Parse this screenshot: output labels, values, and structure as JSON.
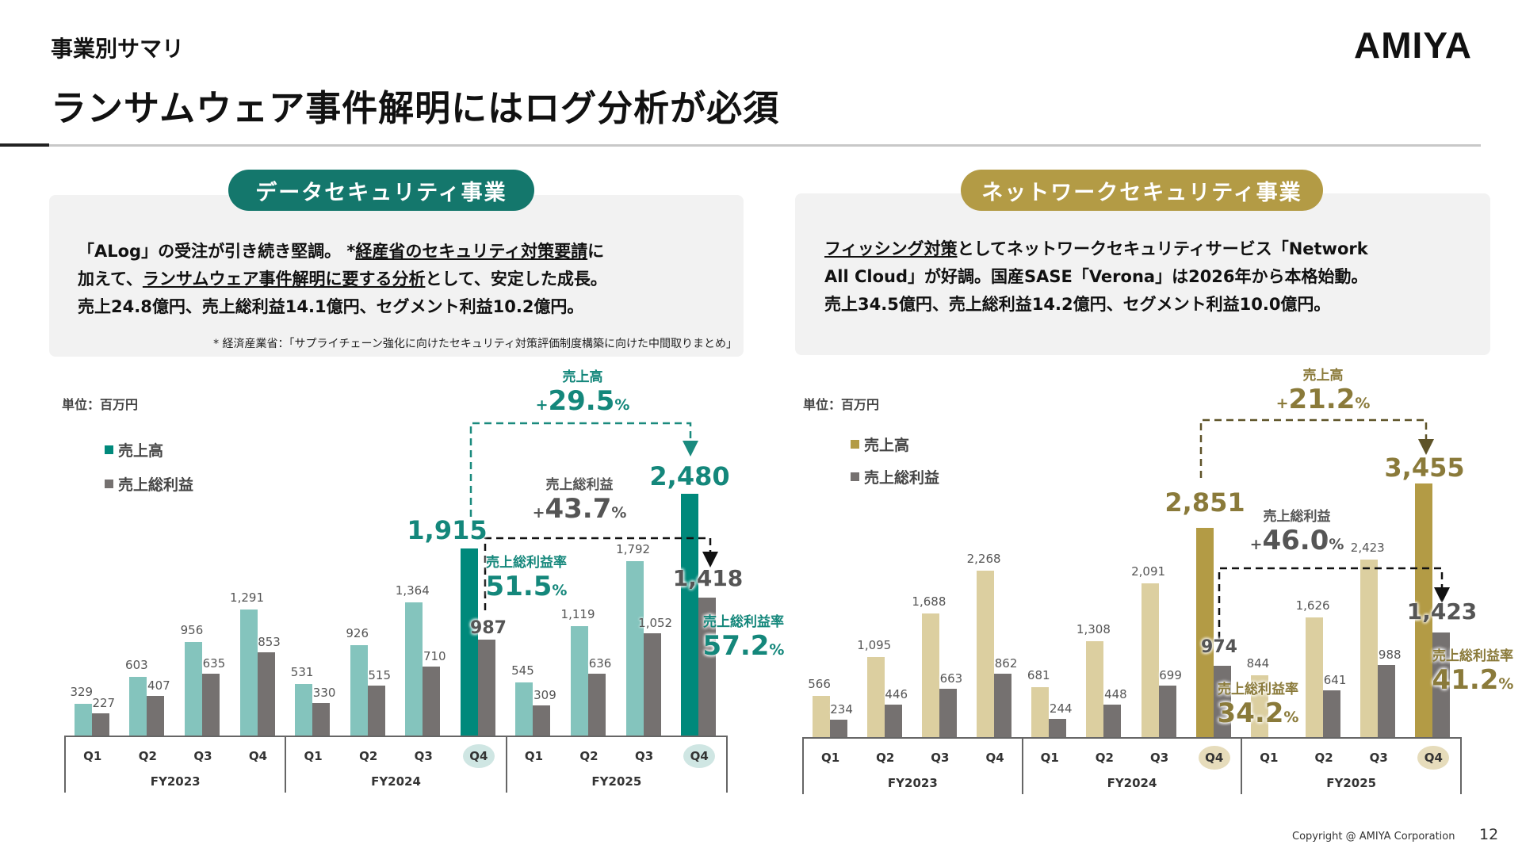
{
  "header": {
    "section": "事業別サマリ",
    "title": "ランサムウェア事件解明にはログ分析が必須",
    "logo": "AMIYA"
  },
  "colors": {
    "teal": "#00897b",
    "teal_light": "#84c4bd",
    "gold": "#b39b45",
    "gold_light": "#dccfa0",
    "gray": "#757170",
    "gold_text": "#8a7a3a"
  },
  "data_security": {
    "pill": "データセキュリティ事業",
    "line1": [
      {
        "t": "「ALog」の受注が引き続き堅調。 *",
        "u": false
      },
      {
        "t": "経産省のセキュリティ対策要請",
        "u": true
      },
      {
        "t": "に",
        "u": false
      }
    ],
    "line2": [
      {
        "t": "加えて、",
        "u": false
      },
      {
        "t": "ランサムウェア事件解明に要する分析",
        "u": true
      },
      {
        "t": "として、安定した成長。",
        "u": false
      }
    ],
    "line3": "売上24.8億円、売上総利益14.1億円、セグメント利益10.2億円。",
    "footnote": "* 経済産業省：「サプライチェーン強化に向けたセキュリティ対策評価制度構築に向けた中間取りまとめ」"
  },
  "network_security": {
    "pill": "ネットワークセキュリティ事業",
    "line1": [
      {
        "t": "フィッシング対策",
        "u": true
      },
      {
        "t": "としてネットワークセキュリティサービス「Network",
        "u": false
      }
    ],
    "line2": "All Cloud」が好調。国産SASE「Verona」は2026年から本格始動。",
    "line3": "売上34.5億円、売上総利益14.2億円、セグメント利益10.0億円。"
  },
  "chart_data": [
    {
      "type": "bar",
      "unit_label": "単位：百万円",
      "categories": [
        "Q1",
        "Q2",
        "Q3",
        "Q4",
        "Q1",
        "Q2",
        "Q3",
        "Q4",
        "Q1",
        "Q2",
        "Q3",
        "Q4"
      ],
      "groups": [
        "FY2023",
        "FY2024",
        "FY2025"
      ],
      "highlight": [
        7,
        11
      ],
      "series": [
        {
          "name": "売上高",
          "values": [
            329,
            603,
            956,
            1291,
            531,
            926,
            1364,
            1915,
            545,
            1119,
            1792,
            2480
          ]
        },
        {
          "name": "売上総利益",
          "values": [
            227,
            407,
            635,
            853,
            330,
            515,
            710,
            987,
            309,
            636,
            1052,
            1418
          ]
        }
      ],
      "annotations": {
        "revenue_growth": {
          "label": "売上高",
          "value": "29.5",
          "sign": "+",
          "unit": "%"
        },
        "gp_growth": {
          "label": "売上総利益",
          "value": "43.7",
          "sign": "+",
          "unit": "%"
        },
        "margin_prev": {
          "label": "売上総利益率",
          "value": "51.5",
          "unit": "%"
        },
        "margin_curr": {
          "label": "売上総利益率",
          "value": "57.2",
          "unit": "%"
        }
      }
    },
    {
      "type": "bar",
      "unit_label": "単位：百万円",
      "categories": [
        "Q1",
        "Q2",
        "Q3",
        "Q4",
        "Q1",
        "Q2",
        "Q3",
        "Q4",
        "Q1",
        "Q2",
        "Q3",
        "Q4"
      ],
      "groups": [
        "FY2023",
        "FY2024",
        "FY2025"
      ],
      "highlight": [
        7,
        11
      ],
      "series": [
        {
          "name": "売上高",
          "values": [
            566,
            1095,
            1688,
            2268,
            681,
            1308,
            2091,
            2851,
            844,
            1626,
            2423,
            3455
          ]
        },
        {
          "name": "売上総利益",
          "values": [
            234,
            446,
            663,
            862,
            244,
            448,
            699,
            974,
            null,
            641,
            988,
            1423
          ]
        }
      ],
      "annotations": {
        "revenue_growth": {
          "label": "売上高",
          "value": "21.2",
          "sign": "+",
          "unit": "%"
        },
        "gp_growth": {
          "label": "売上総利益",
          "value": "46.0",
          "sign": "+",
          "unit": "%"
        },
        "margin_prev": {
          "label": "売上総利益率",
          "value": "34.2",
          "unit": "%"
        },
        "margin_curr": {
          "label": "売上総利益率",
          "value": "41.2",
          "unit": "%"
        }
      }
    }
  ],
  "footer": {
    "copyright": "Copyright @ AMIYA Corporation",
    "page": "12"
  }
}
